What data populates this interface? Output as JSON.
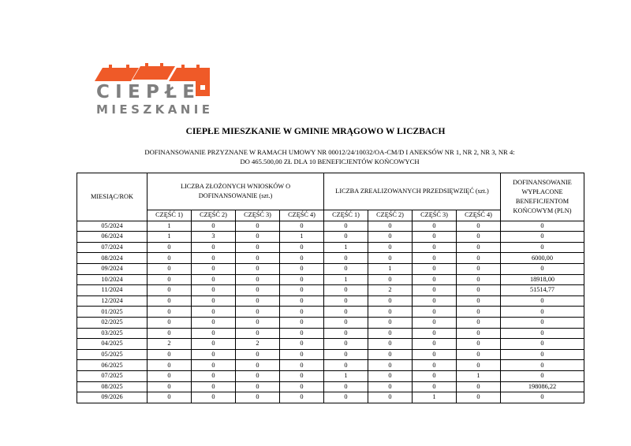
{
  "logo": {
    "line1": "CIEPŁE",
    "line2": "MIESZKANIE",
    "colors": {
      "roof": "#ef5a28",
      "text": "#7f7f7f"
    }
  },
  "title": "CIEPŁE MIESZKANIE W GMINIE MRĄGOWO W LICZBACH",
  "subtitle_line1": "DOFINANSOWANIE PRZYZNANE W RAMACH UMOWY NR 00012/24/10032/OA-CM/D I ANEKSÓW NR 1, NR 2, NR 3, NR 4:",
  "subtitle_line2": "DO 465.500,00 ZŁ DLA 10 BENEFICJENTÓW KOŃCOWYCH",
  "table": {
    "col_month": "MIESIĄC/ROK",
    "group1": "LICZBA ZŁOŻONYCH WNIOSKÓW O DOFINANSOWANIE (szt.)",
    "group2": "LICZBA ZREALIZOWANYCH PRZEDSIĘWZIĘĆ (szt.)",
    "col_paid": "DOFINANSOWANIE WYPŁACONE BENEFICJENTOM KOŃCOWYM (PLN)",
    "parts": [
      "CZĘŚĆ 1)",
      "CZĘŚĆ 2)",
      "CZĘŚĆ 3)",
      "CZĘŚĆ 4)"
    ],
    "rows": [
      [
        "05/2024",
        "1",
        "0",
        "0",
        "0",
        "0",
        "0",
        "0",
        "0",
        "0"
      ],
      [
        "06/2024",
        "1",
        "3",
        "0",
        "1",
        "0",
        "0",
        "0",
        "0",
        "0"
      ],
      [
        "07/2024",
        "0",
        "0",
        "0",
        "0",
        "1",
        "0",
        "0",
        "0",
        "0"
      ],
      [
        "08/2024",
        "0",
        "0",
        "0",
        "0",
        "0",
        "0",
        "0",
        "0",
        "6000,00"
      ],
      [
        "09/2024",
        "0",
        "0",
        "0",
        "0",
        "0",
        "1",
        "0",
        "0",
        "0"
      ],
      [
        "10/2024",
        "0",
        "0",
        "0",
        "0",
        "1",
        "0",
        "0",
        "0",
        "18918,00"
      ],
      [
        "11/2024",
        "0",
        "0",
        "0",
        "0",
        "0",
        "2",
        "0",
        "0",
        "51514,77"
      ],
      [
        "12/2024",
        "0",
        "0",
        "0",
        "0",
        "0",
        "0",
        "0",
        "0",
        "0"
      ],
      [
        "01/2025",
        "0",
        "0",
        "0",
        "0",
        "0",
        "0",
        "0",
        "0",
        "0"
      ],
      [
        "02/2025",
        "0",
        "0",
        "0",
        "0",
        "0",
        "0",
        "0",
        "0",
        "0"
      ],
      [
        "03/2025",
        "0",
        "0",
        "0",
        "0",
        "0",
        "0",
        "0",
        "0",
        "0"
      ],
      [
        "04/2025",
        "2",
        "0",
        "2",
        "0",
        "0",
        "0",
        "0",
        "0",
        "0"
      ],
      [
        "05/2025",
        "0",
        "0",
        "0",
        "0",
        "0",
        "0",
        "0",
        "0",
        "0"
      ],
      [
        "06/2025",
        "0",
        "0",
        "0",
        "0",
        "0",
        "0",
        "0",
        "0",
        "0"
      ],
      [
        "07/2025",
        "0",
        "0",
        "0",
        "0",
        "1",
        "0",
        "0",
        "1",
        "0"
      ],
      [
        "08/2025",
        "0",
        "0",
        "0",
        "0",
        "0",
        "0",
        "0",
        "0",
        "198086,22"
      ],
      [
        "09/2026",
        "0",
        "0",
        "0",
        "0",
        "0",
        "0",
        "1",
        "0",
        "0"
      ]
    ]
  }
}
